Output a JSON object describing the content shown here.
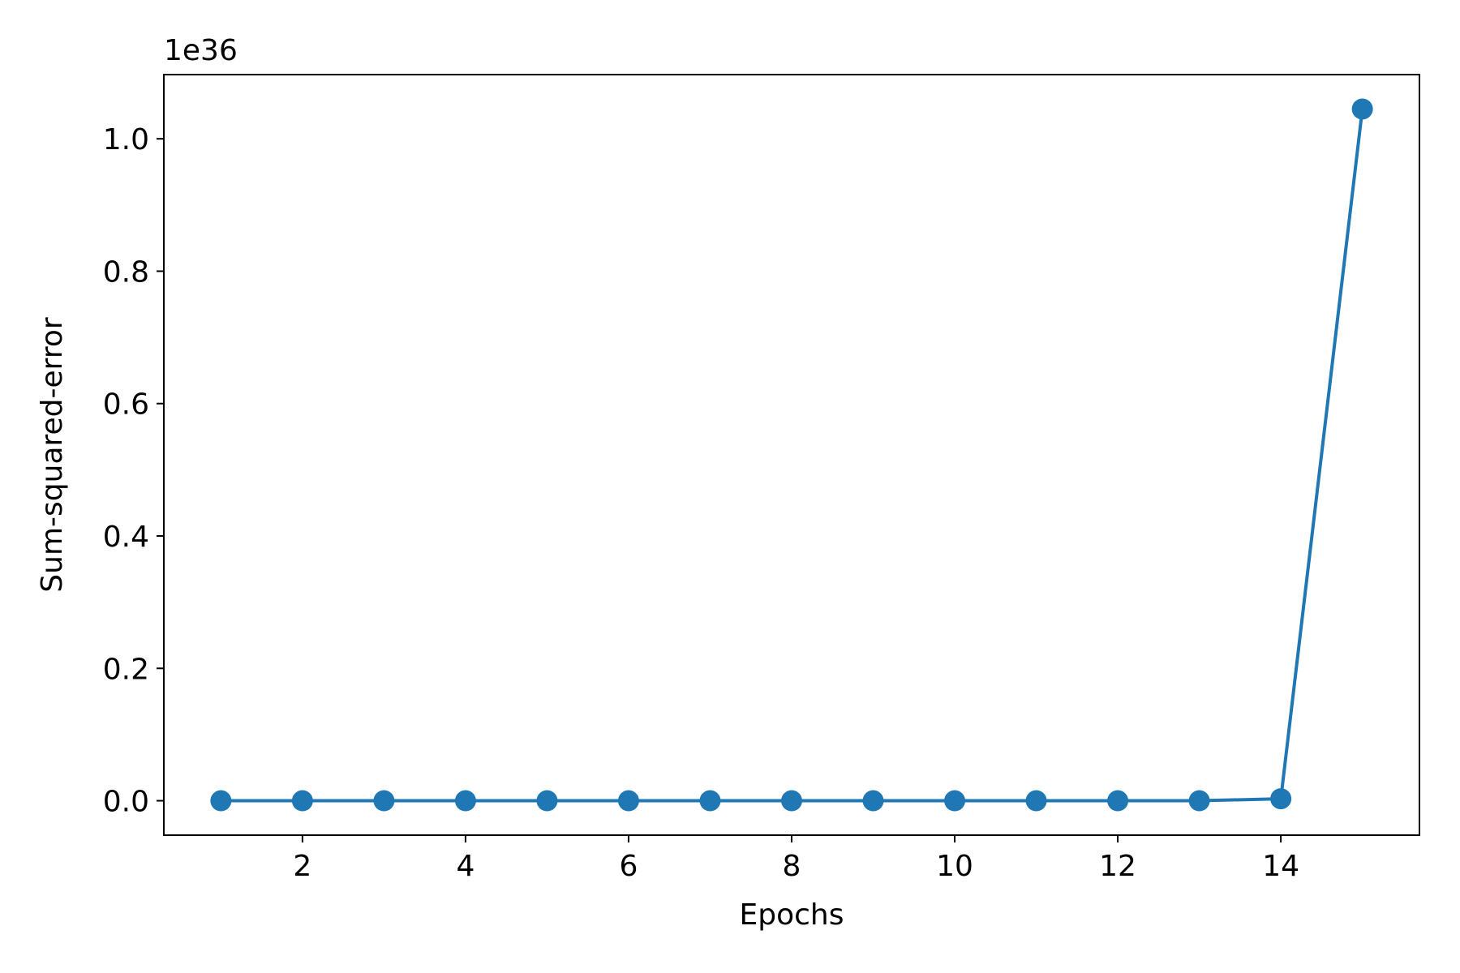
{
  "chart_data": {
    "type": "line",
    "title": "",
    "xlabel": "Epochs",
    "ylabel": "Sum-squared-error",
    "y_offset_label": "1e36",
    "y_scale_exponent": 36,
    "xlim": [
      0.3,
      15.7
    ],
    "ylim": [
      -0.052,
      1.097
    ],
    "x_ticks": [
      2,
      4,
      6,
      8,
      10,
      12,
      14
    ],
    "x_tick_labels": [
      "2",
      "4",
      "6",
      "8",
      "10",
      "12",
      "14"
    ],
    "y_ticks": [
      0.0,
      0.2,
      0.4,
      0.6,
      0.8,
      1.0
    ],
    "y_tick_labels": [
      "0.0",
      "0.2",
      "0.4",
      "0.6",
      "0.8",
      "1.0"
    ],
    "grid": false,
    "legend": "none",
    "series": [
      {
        "color": "#1f77b4",
        "marker": "circle",
        "x": [
          1,
          2,
          3,
          4,
          5,
          6,
          7,
          8,
          9,
          10,
          11,
          12,
          13,
          14,
          15
        ],
        "y": [
          0,
          0,
          0,
          0,
          0,
          0,
          0,
          0,
          0,
          0,
          0,
          0,
          0,
          0.003,
          1.045
        ]
      }
    ]
  }
}
